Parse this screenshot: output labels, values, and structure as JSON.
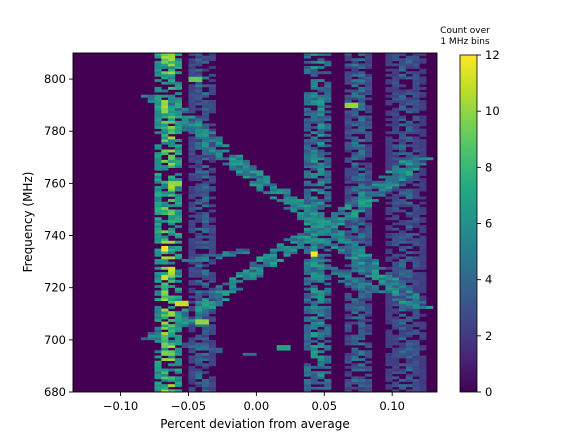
{
  "chart_data": {
    "type": "heatmap",
    "title": "",
    "xlabel": "Percent deviation from average",
    "ylabel": "Frequency (MHz)",
    "xlim": [
      -0.135,
      0.133
    ],
    "ylim": [
      680,
      810
    ],
    "x_ticks": [
      {
        "value": -0.1,
        "label": "−0.10"
      },
      {
        "value": -0.05,
        "label": "−0.05"
      },
      {
        "value": 0.0,
        "label": "0.00"
      },
      {
        "value": 0.05,
        "label": "0.05"
      },
      {
        "value": 0.1,
        "label": "0.10"
      }
    ],
    "y_ticks": [
      {
        "value": 680,
        "label": "680"
      },
      {
        "value": 700,
        "label": "700"
      },
      {
        "value": 720,
        "label": "720"
      },
      {
        "value": 740,
        "label": "740"
      },
      {
        "value": 760,
        "label": "760"
      },
      {
        "value": 780,
        "label": "780"
      },
      {
        "value": 800,
        "label": "800"
      }
    ],
    "colorbar": {
      "title_lines": [
        "Count over",
        "1 MHz bins"
      ],
      "range": [
        0,
        12
      ],
      "colormap": "viridis",
      "ticks": [
        {
          "value": 0,
          "label": "0"
        },
        {
          "value": 2,
          "label": "2"
        },
        {
          "value": 4,
          "label": "4"
        },
        {
          "value": 6,
          "label": "6"
        },
        {
          "value": 8,
          "label": "8"
        },
        {
          "value": 10,
          "label": "10"
        },
        {
          "value": 12,
          "label": "12"
        }
      ]
    },
    "frequency_bin_width_mhz": 1,
    "deviation_bin_width": 0.005,
    "patterns": {
      "vertical_bands": [
        {
          "x_center": -0.065,
          "x_width": 0.012,
          "peak_count": 12,
          "base_count": 5
        },
        {
          "x_center": -0.04,
          "x_width": 0.01,
          "peak_count": 6,
          "base_count": 2
        },
        {
          "x_center": 0.045,
          "x_width": 0.012,
          "peak_count": 8,
          "base_count": 3
        },
        {
          "x_center": 0.075,
          "x_width": 0.012,
          "peak_count": 6,
          "base_count": 2
        },
        {
          "x_center": 0.11,
          "x_width": 0.014,
          "peak_count": 5,
          "base_count": 2
        }
      ],
      "diagonal_tracks": [
        {
          "points": [
            [
              -0.075,
              794
            ],
            [
              -0.02,
              770
            ],
            [
              0.045,
              745
            ],
            [
              0.12,
              712
            ]
          ],
          "width": 0.01,
          "count": 6
        },
        {
          "points": [
            [
              -0.075,
              700
            ],
            [
              -0.03,
              716
            ],
            [
              0.03,
              738
            ],
            [
              0.065,
              748
            ],
            [
              0.12,
              770
            ]
          ],
          "width": 0.01,
          "count": 6
        },
        {
          "points": [
            [
              -0.05,
              730
            ],
            [
              0.0,
              735
            ],
            [
              0.04,
              730
            ],
            [
              0.09,
              718
            ]
          ],
          "width": 0.009,
          "count": 5
        },
        {
          "points": [
            [
              -0.07,
              700
            ],
            [
              -0.03,
              696
            ],
            [
              0.0,
              694
            ],
            [
              0.04,
              697
            ]
          ],
          "width": 0.009,
          "count": 4
        }
      ],
      "hot_spots": [
        {
          "x": -0.068,
          "y": 735,
          "count": 12
        },
        {
          "x": -0.068,
          "y": 724,
          "count": 11
        },
        {
          "x": -0.063,
          "y": 710,
          "count": 10
        },
        {
          "x": -0.063,
          "y": 727,
          "count": 11
        },
        {
          "x": -0.062,
          "y": 770,
          "count": 9
        },
        {
          "x": -0.06,
          "y": 760,
          "count": 10
        },
        {
          "x": -0.055,
          "y": 714,
          "count": 11
        },
        {
          "x": -0.04,
          "y": 707,
          "count": 10
        },
        {
          "x": 0.043,
          "y": 733,
          "count": 12
        },
        {
          "x": 0.07,
          "y": 790,
          "count": 10
        },
        {
          "x": -0.045,
          "y": 800,
          "count": 9
        },
        {
          "x": 0.02,
          "y": 697,
          "count": 7
        }
      ]
    }
  }
}
